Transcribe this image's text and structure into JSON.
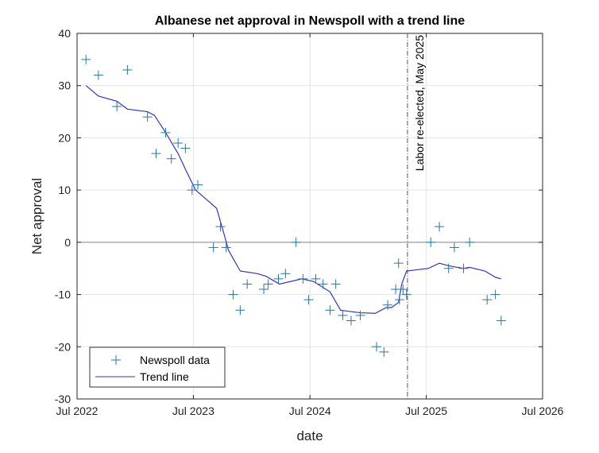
{
  "chart_data": {
    "type": "scatter",
    "title": "Albanese net approval in Newspoll with a trend line",
    "xlabel": "date",
    "ylabel": "Net approval",
    "xlim": [
      "2022-07-01",
      "2026-07-01"
    ],
    "ylim": [
      -30,
      40
    ],
    "xticks": [
      "Jul 2022",
      "Jul 2023",
      "Jul 2024",
      "Jul 2025",
      "Jul 2026"
    ],
    "xtick_dates": [
      "2022-07-01",
      "2023-07-01",
      "2024-07-01",
      "2025-07-01",
      "2026-07-01"
    ],
    "yticks": [
      -30,
      -20,
      -10,
      0,
      10,
      20,
      30,
      40
    ],
    "grid": true,
    "legend_position": "bottom-left",
    "colors": {
      "points": "#1f77b4",
      "trend": "#3333cc",
      "zero_line": "#808080"
    },
    "series": [
      {
        "name": "Newspoll data",
        "marker": "plus",
        "x": [
          "2022-07-29",
          "2022-09-06",
          "2022-11-03",
          "2022-12-06",
          "2023-02-07",
          "2023-03-06",
          "2023-04-05",
          "2023-04-23",
          "2023-05-14",
          "2023-06-06",
          "2023-06-27",
          "2023-07-15",
          "2023-09-02",
          "2023-09-24",
          "2023-10-12",
          "2023-11-03",
          "2023-11-25",
          "2023-12-17",
          "2024-02-07",
          "2024-02-21",
          "2024-03-24",
          "2024-04-15",
          "2024-05-18",
          "2024-06-09",
          "2024-06-27",
          "2024-07-19",
          "2024-08-11",
          "2024-09-02",
          "2024-09-20",
          "2024-10-12",
          "2024-11-07",
          "2024-12-06",
          "2025-01-26",
          "2025-02-18",
          "2025-03-02",
          "2025-03-27",
          "2025-04-05",
          "2025-04-08",
          "2025-04-19",
          "2025-04-30",
          "2025-07-15",
          "2025-08-11",
          "2025-09-09",
          "2025-09-27",
          "2025-10-26",
          "2025-11-14",
          "2026-01-08",
          "2026-02-03",
          "2026-02-21"
        ],
        "y": [
          35,
          32,
          26,
          33,
          24,
          17,
          21,
          16,
          19,
          18,
          10,
          11,
          -1,
          3,
          -1,
          -10,
          -13,
          -8,
          -9,
          -8,
          -7,
          -6,
          0,
          -7,
          -11,
          -7,
          -8,
          -13,
          -8,
          -14,
          -15,
          -14,
          -20,
          -21,
          -12,
          -9,
          -4,
          -11,
          -9,
          -10,
          0,
          3,
          -5,
          -1,
          -5,
          0,
          -11,
          -10,
          -15
        ]
      },
      {
        "name": "Trend line",
        "line": true,
        "x": [
          "2022-07-29",
          "2022-09-06",
          "2022-11-03",
          "2022-12-06",
          "2023-02-07",
          "2023-03-01",
          "2023-04-05",
          "2023-05-14",
          "2023-06-06",
          "2023-07-08",
          "2023-08-15",
          "2023-09-12",
          "2023-10-08",
          "2023-10-19",
          "2023-11-25",
          "2024-01-18",
          "2024-02-14",
          "2024-03-27",
          "2024-06-05",
          "2024-07-12",
          "2024-09-02",
          "2024-10-05",
          "2024-12-06",
          "2025-01-22",
          "2025-02-25",
          "2025-03-14",
          "2025-04-05",
          "2025-04-15",
          "2025-04-30",
          "2025-07-08",
          "2025-08-11",
          "2025-09-09",
          "2025-10-26",
          "2025-11-14",
          "2026-01-01",
          "2026-02-03",
          "2026-02-21"
        ],
        "y": [
          30,
          28,
          27,
          25.5,
          25,
          24.3,
          21,
          17,
          14,
          10,
          8,
          6.5,
          1,
          -1.5,
          -5.5,
          -6,
          -6.5,
          -8,
          -7,
          -7.5,
          -9.5,
          -13,
          -13.5,
          -13.6,
          -12.5,
          -12.5,
          -11.5,
          -8,
          -5.5,
          -5,
          -4,
          -4.5,
          -5,
          -4.8,
          -5.5,
          -6.7,
          -7
        ]
      }
    ],
    "annotations": [
      {
        "text": "Labor re-elected, May 2025",
        "x": "2025-05-03",
        "style": "dash-dot vertical line"
      }
    ]
  }
}
